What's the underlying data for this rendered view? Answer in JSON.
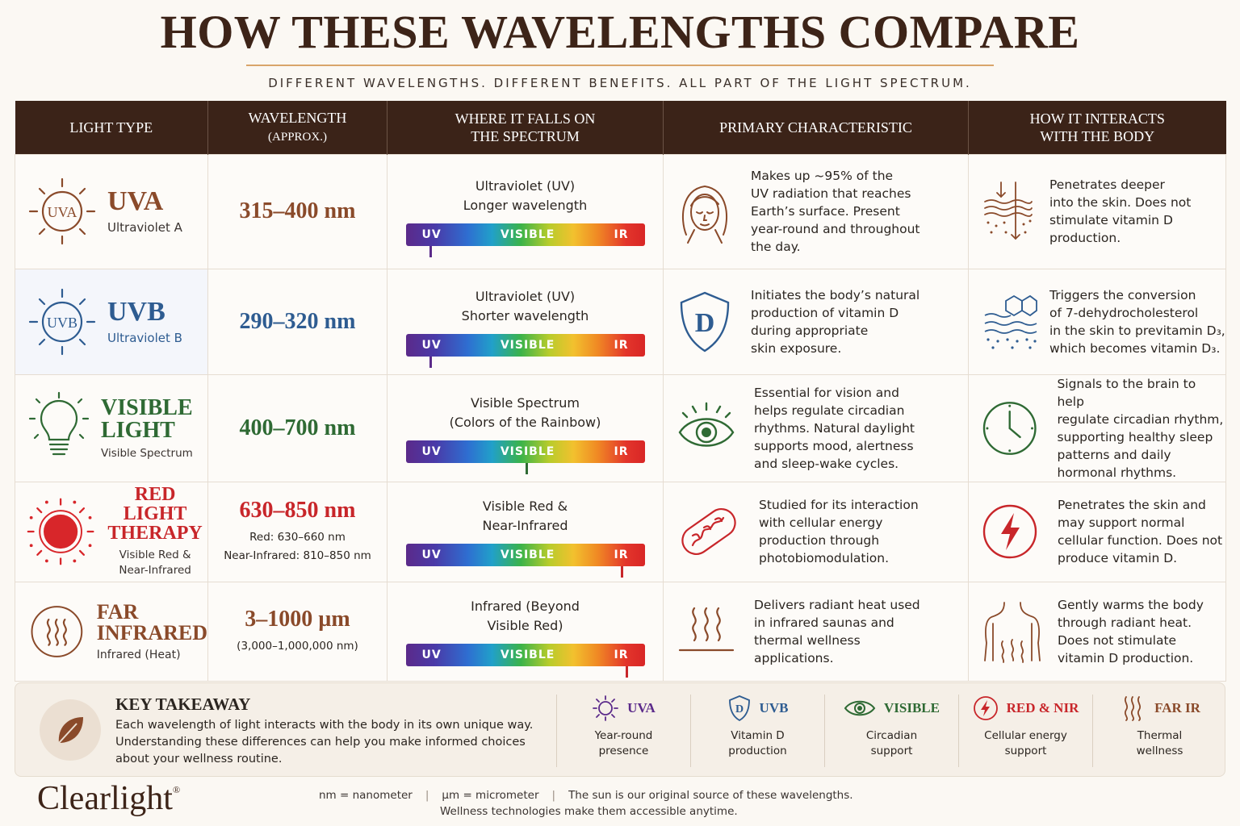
{
  "header": {
    "title": "HOW THESE WAVELENGTHS COMPARE",
    "subtitle": "DIFFERENT WAVELENGTHS. DIFFERENT BENEFITS. ALL PART OF THE LIGHT SPECTRUM."
  },
  "columns": {
    "c1": "LIGHT TYPE",
    "c2a": "WAVELENGTH",
    "c2b": "(APPROX.)",
    "c3a": "WHERE IT FALLS ON",
    "c3b": "THE SPECTRUM",
    "c4": "PRIMARY CHARACTERISTIC",
    "c5a": "HOW IT INTERACTS",
    "c5b": "WITH THE BODY"
  },
  "spectrum_labels": {
    "uv": "UV",
    "visible": "VISIBLE",
    "ir": "IR"
  },
  "rows": [
    {
      "icon_text": "UVA",
      "name": "UVA",
      "sub": "Ultraviolet A",
      "color": "#8a4a2a",
      "wavelength": "315–400 nm",
      "spec1": "Ultraviolet (UV)",
      "spec2": "Longer wavelength",
      "marker": 0.1,
      "characteristic": [
        "Makes up ~95% of the",
        "UV radiation that reaches",
        "Earth’s surface. Present",
        "year-round and throughout",
        "the day."
      ],
      "interaction": [
        "Penetrates deeper",
        "into the skin. Does not",
        "stimulate vitamin D",
        "production."
      ]
    },
    {
      "icon_text": "UVB",
      "name": "UVB",
      "sub": "Ultraviolet B",
      "color": "#2e5c91",
      "wavelength": "290–320 nm",
      "spec1": "Ultraviolet (UV)",
      "spec2": "Shorter wavelength",
      "marker": 0.1,
      "characteristic": [
        "Initiates the body’s natural",
        "production of vitamin D",
        "during appropriate",
        "skin exposure."
      ],
      "shield_letter": "D",
      "interaction": [
        "Triggers the conversion",
        "of 7-dehydrocholesterol",
        "in the skin to previtamin D₃,",
        "which becomes vitamin D₃."
      ]
    },
    {
      "name1": "VISIBLE",
      "name2": "LIGHT",
      "sub": "Visible Spectrum",
      "color": "#2f6a34",
      "wavelength": "400–700 nm",
      "spec1": "Visible Spectrum",
      "spec2": "(Colors of the Rainbow)",
      "marker": 0.5,
      "characteristic": [
        "Essential for vision and",
        "helps regulate circadian",
        "rhythms. Natural daylight",
        "supports mood, alertness",
        "and sleep-wake cycles."
      ],
      "interaction": [
        "Signals to the brain to help",
        "regulate circadian rhythm,",
        "supporting healthy sleep",
        "patterns and daily",
        "hormonal rhythms."
      ]
    },
    {
      "name1": "RED LIGHT",
      "name2": "THERAPY",
      "sub1": "Visible Red &",
      "sub2": "Near-Infrared",
      "color": "#c8262a",
      "wavelength": "630–850 nm",
      "wl_sub1": "Red: 630–660 nm",
      "wl_sub2": "Near-Infrared: 810–850 nm",
      "spec1": "Visible Red &",
      "spec2": "Near-Infrared",
      "marker": 0.9,
      "characteristic": [
        "Studied for its interaction",
        "with cellular energy",
        "production through",
        "photobiomodulation."
      ],
      "interaction": [
        "Penetrates the skin and",
        "may support normal",
        "cellular function. Does not",
        "produce vitamin D."
      ]
    },
    {
      "name1": "FAR",
      "name2": "INFRARED",
      "sub": "Infrared (Heat)",
      "color": "#8a4a2a",
      "wavelength": "3–1000 µm",
      "wl_sub1": "(3,000–1,000,000 nm)",
      "spec1": "Infrared (Beyond",
      "spec2": "Visible Red)",
      "marker": 0.92,
      "characteristic": [
        "Delivers radiant heat used",
        "in infrared saunas and",
        "thermal wellness",
        "applications."
      ],
      "interaction": [
        "Gently warms the body",
        "through radiant heat.",
        "Does not stimulate",
        "vitamin D production."
      ]
    }
  ],
  "takeaway": {
    "title": "KEY TAKEAWAY",
    "text": "Each wavelength of light interacts with the body in its own unique way. Understanding these differences can help you make informed choices about your wellness routine.",
    "items": [
      {
        "label": "UVA",
        "sub1": "Year-round",
        "sub2": "presence",
        "color": "#5b2a8a"
      },
      {
        "label": "UVB",
        "sub1": "Vitamin D",
        "sub2": "production",
        "color": "#2e5c91",
        "shield_letter": "D"
      },
      {
        "label": "VISIBLE",
        "sub1": "Circadian",
        "sub2": "support",
        "color": "#2f6a34"
      },
      {
        "label": "RED & NIR",
        "sub1": "Cellular energy",
        "sub2": "support",
        "color": "#c8262a"
      },
      {
        "label": "FAR IR",
        "sub1": "Thermal",
        "sub2": "wellness",
        "color": "#8a4a2a"
      }
    ]
  },
  "footer": {
    "brand": "Clearlight",
    "brand_mark": "®",
    "nm": "nm = nanometer",
    "um": "µm = micrometer",
    "sep": "|",
    "note1": "The sun is our original source of these wavelengths.",
    "note2": "Wellness technologies make them accessible anytime."
  }
}
